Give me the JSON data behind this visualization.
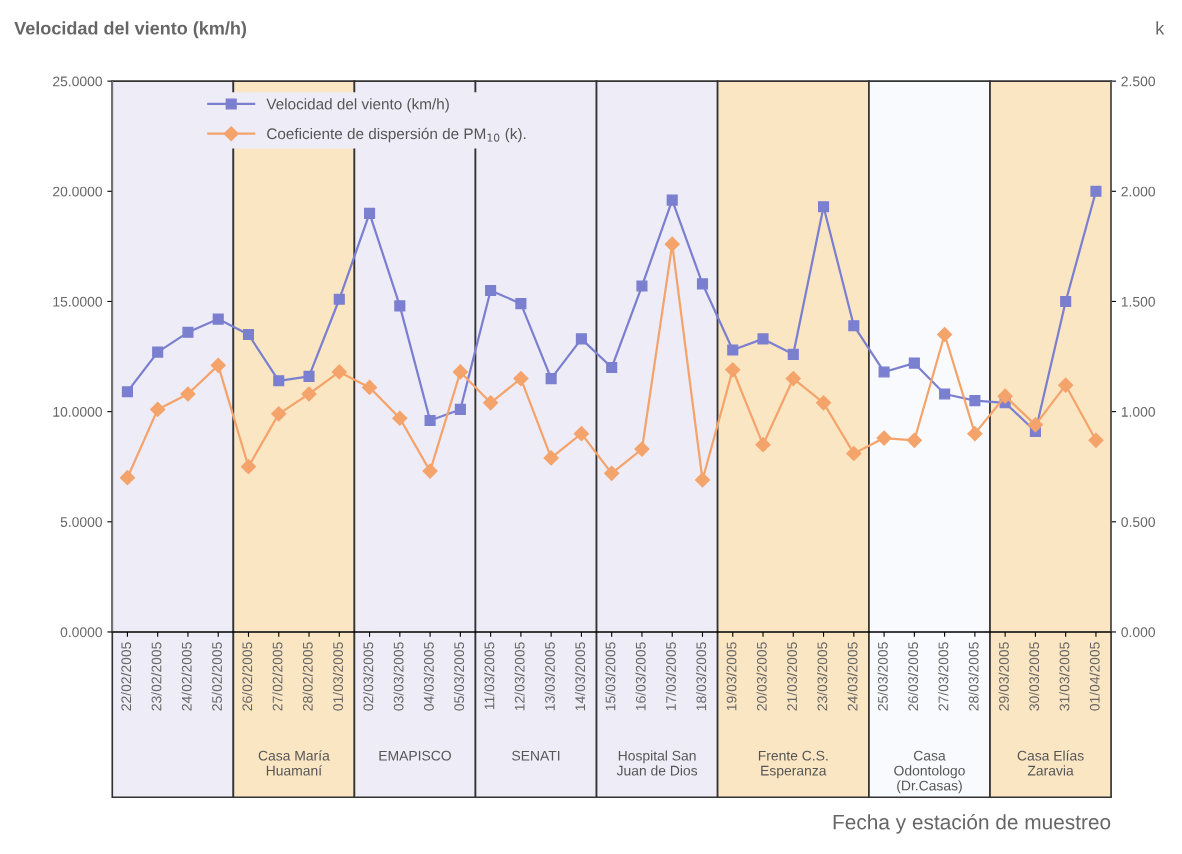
{
  "chart_data": {
    "type": "line",
    "ylabel": "Velocidad del viento (km/h)",
    "y2label": "k",
    "xlabel": "Fecha y estación de muestreo",
    "categories": [
      "22/02/2005",
      "23/02/2005",
      "24/02/2005",
      "25/02/2005",
      "26/02/2005",
      "27/02/2005",
      "28/02/2005",
      "01/03/2005",
      "02/03/2005",
      "03/03/2005",
      "04/03/2005",
      "05/03/2005",
      "11/03/2005",
      "12/03/2005",
      "13/03/2005",
      "14/03/2005",
      "15/03/2005",
      "16/03/2005",
      "17/03/2005",
      "18/03/2005",
      "19/03/2005",
      "20/03/2005",
      "21/03/2005",
      "23/03/2005",
      "24/03/2005",
      "25/03/2005",
      "26/03/2005",
      "27/03/2005",
      "28/03/2005",
      "29/03/2005",
      "30/03/2005",
      "31/03/2005",
      "01/04/2005"
    ],
    "series": [
      {
        "name": "Velocidad del viento (km/h)",
        "color": "#7b7fcf",
        "marker": "square",
        "values": [
          10.9,
          12.7,
          13.6,
          14.2,
          13.5,
          11.4,
          11.6,
          15.1,
          19.0,
          14.8,
          9.6,
          10.1,
          15.5,
          14.9,
          11.5,
          13.3,
          12.0,
          15.7,
          19.6,
          15.8,
          12.8,
          13.3,
          12.6,
          19.3,
          13.9,
          11.8,
          12.2,
          10.8,
          10.5,
          10.4,
          9.1,
          15.0,
          20.0
        ]
      },
      {
        "name": "Coeficiente de dispersión de PM$_{10}$ (k).",
        "color": "#f4a36b",
        "marker": "diamond",
        "axis": "y2",
        "values": [
          0.7,
          1.01,
          1.08,
          1.21,
          0.75,
          0.99,
          1.08,
          1.18,
          1.11,
          0.97,
          0.73,
          1.18,
          1.04,
          1.15,
          0.79,
          0.9,
          0.72,
          0.83,
          1.76,
          0.69,
          1.19,
          0.85,
          1.15,
          1.04,
          0.81,
          0.88,
          0.87,
          1.35,
          0.9,
          1.07,
          0.94,
          1.12,
          0.87
        ]
      }
    ],
    "ylim": [
      0,
      25
    ],
    "yticks": [
      {
        "value": 0,
        "label": "0.0000"
      },
      {
        "value": 5,
        "label": "5.0000"
      },
      {
        "value": 10,
        "label": "10.0000"
      },
      {
        "value": 15,
        "label": "15.0000"
      },
      {
        "value": 20,
        "label": "20.0000"
      },
      {
        "value": 25,
        "label": "25.0000"
      }
    ],
    "y2lim": [
      0,
      2.5
    ],
    "y2ticks": [
      {
        "value": 0,
        "label": "0.000"
      },
      {
        "value": 0.5,
        "label": "0.500"
      },
      {
        "value": 1,
        "label": "1.000"
      },
      {
        "value": 1.5,
        "label": "1.500"
      },
      {
        "value": 2,
        "label": "2.000"
      },
      {
        "value": 2.5,
        "label": "2.500"
      }
    ],
    "bands": [
      {
        "axis": "x",
        "from": "22/02/2005",
        "to": "25/02/2005",
        "label": null,
        "color": "#eeecf7"
      },
      {
        "axis": "x",
        "from": "26/02/2005",
        "to": "01/03/2005",
        "label": "Casa María\nHuamaní",
        "color": "#fbe6c4"
      },
      {
        "axis": "x",
        "from": "02/03/2005",
        "to": "05/03/2005",
        "label": "EMAPISCO",
        "color": "#eeecf7"
      },
      {
        "axis": "x",
        "from": "11/03/2005",
        "to": "14/03/2005",
        "label": "SENATI",
        "color": "#eeecf7"
      },
      {
        "axis": "x",
        "from": "15/03/2005",
        "to": "18/03/2005",
        "label": "Hospital San\nJuan de Dios",
        "color": "#eeecf7"
      },
      {
        "axis": "x",
        "from": "19/03/2005",
        "to": "24/03/2005",
        "label": "Frente C.S.\nEsperanza",
        "color": "#fbe6c4"
      },
      {
        "axis": "x",
        "from": "25/03/2005",
        "to": "28/03/2005",
        "label": "Casa\nOdontologo\n(Dr.Casas)",
        "color": "#f9fafd"
      },
      {
        "axis": "x",
        "from": "29/03/2005",
        "to": "01/04/2005",
        "label": "Casa Elías\nZaravia",
        "color": "#fbe6c4"
      }
    ],
    "legend": "top left",
    "grid": false,
    "line_style": "solid"
  }
}
